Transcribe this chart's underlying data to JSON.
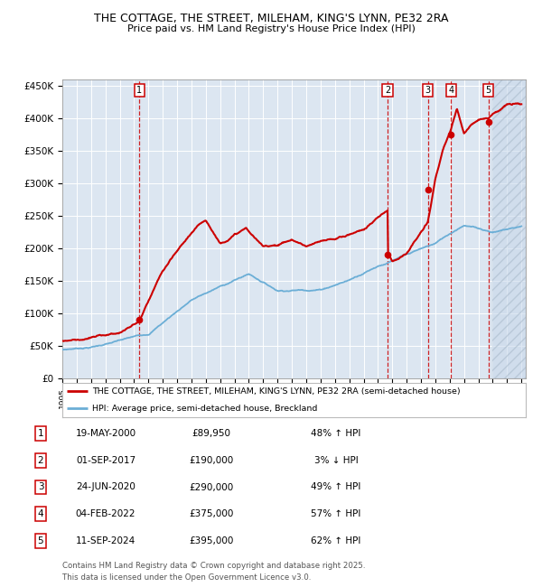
{
  "title_line1": "THE COTTAGE, THE STREET, MILEHAM, KING'S LYNN, PE32 2RA",
  "title_line2": "Price paid vs. HM Land Registry's House Price Index (HPI)",
  "ylabel_ticks": [
    "£0",
    "£50K",
    "£100K",
    "£150K",
    "£200K",
    "£250K",
    "£300K",
    "£350K",
    "£400K",
    "£450K"
  ],
  "ylabel_values": [
    0,
    50000,
    100000,
    150000,
    200000,
    250000,
    300000,
    350000,
    400000,
    450000
  ],
  "ylim": [
    0,
    460000
  ],
  "xlim_start": 1995.0,
  "xlim_end": 2027.3,
  "background_color": "#ffffff",
  "plot_bg_color": "#dce6f1",
  "grid_color": "#ffffff",
  "hpi_line_color": "#6baed6",
  "price_line_color": "#cc0000",
  "sale_marker_color": "#cc0000",
  "dashed_line_color": "#cc0000",
  "legend_label_price": "THE COTTAGE, THE STREET, MILEHAM, KING'S LYNN, PE32 2RA (semi-detached house)",
  "legend_label_hpi": "HPI: Average price, semi-detached house, Breckland",
  "sales": [
    {
      "num": 1,
      "date_f": 2000.38,
      "price": 89950
    },
    {
      "num": 2,
      "date_f": 2017.67,
      "price": 190000
    },
    {
      "num": 3,
      "date_f": 2020.48,
      "price": 290000
    },
    {
      "num": 4,
      "date_f": 2022.09,
      "price": 375000
    },
    {
      "num": 5,
      "date_f": 2024.69,
      "price": 395000
    }
  ],
  "footnote": "Contains HM Land Registry data © Crown copyright and database right 2025.\nThis data is licensed under the Open Government Licence v3.0.",
  "table_rows": [
    [
      "1",
      "19-MAY-2000",
      "£89,950",
      "48% ↑ HPI"
    ],
    [
      "2",
      "01-SEP-2017",
      "£190,000",
      "3% ↓ HPI"
    ],
    [
      "3",
      "24-JUN-2020",
      "£290,000",
      "49% ↑ HPI"
    ],
    [
      "4",
      "04-FEB-2022",
      "£375,000",
      "57% ↑ HPI"
    ],
    [
      "5",
      "11-SEP-2024",
      "£395,000",
      "62% ↑ HPI"
    ]
  ],
  "hatch_start": 2025.0,
  "hatch_end": 2027.3
}
